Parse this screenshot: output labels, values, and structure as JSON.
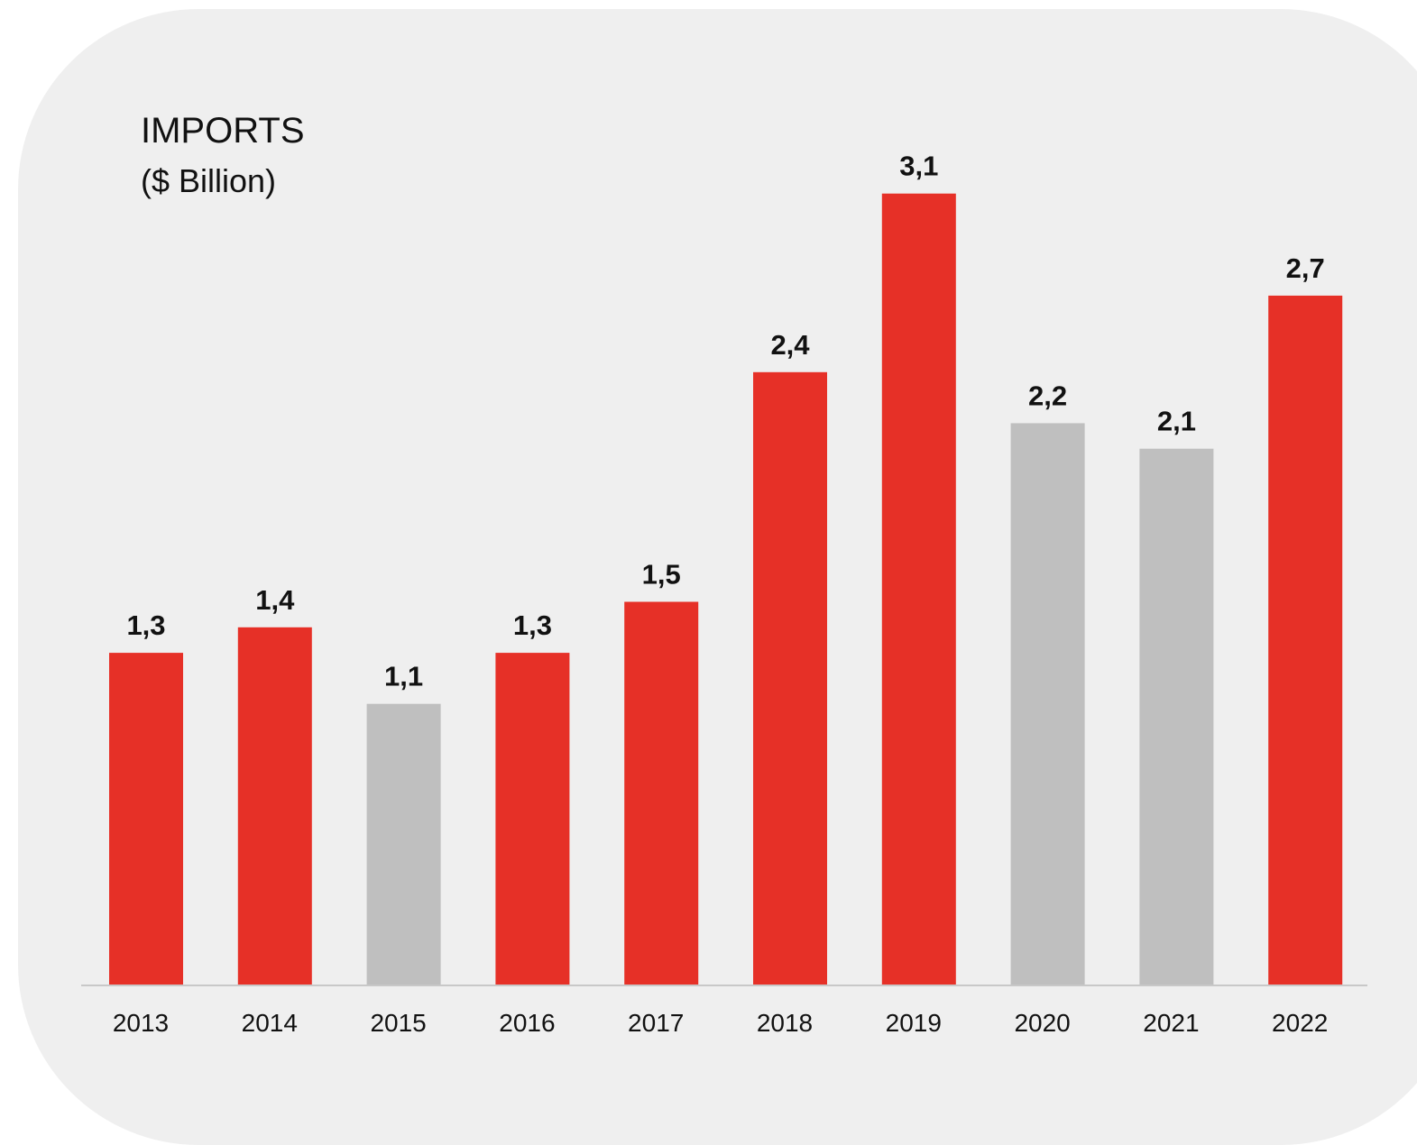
{
  "chart_data": {
    "type": "bar",
    "title": "IMPORTS",
    "subtitle": "($ Billion)",
    "categories": [
      "2013",
      "2014",
      "2015",
      "2016",
      "2017",
      "2018",
      "2019",
      "2020",
      "2021",
      "2022"
    ],
    "values": [
      1.3,
      1.4,
      1.1,
      1.3,
      1.5,
      2.4,
      3.1,
      2.2,
      2.1,
      2.7
    ],
    "value_labels": [
      "1,3",
      "1,4",
      "1,1",
      "1,3",
      "1,5",
      "2,4",
      "3,1",
      "2,2",
      "2,1",
      "2,7"
    ],
    "bar_colors": [
      "#e63027",
      "#e63027",
      "#bfbfbf",
      "#e63027",
      "#e63027",
      "#e63027",
      "#e63027",
      "#bfbfbf",
      "#bfbfbf",
      "#e63027"
    ],
    "ylim": [
      0,
      3.2
    ],
    "grid": false,
    "xlabel": "",
    "ylabel": ""
  },
  "colors": {
    "background": "#efefef",
    "increase": "#e63027",
    "decrease": "#bfbfbf",
    "axis": "#c8c8c8",
    "text": "#111111"
  }
}
